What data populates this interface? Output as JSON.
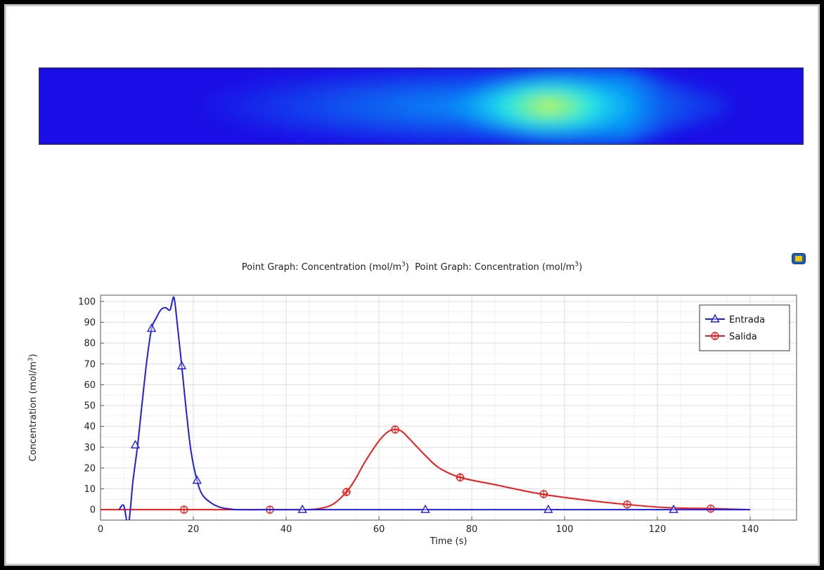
{
  "header": {
    "title_prefix": "Point Graph: Concentration (mol/m",
    "title_sup": "3",
    "title_suffix": ")",
    "export_icon": "export-image-icon"
  },
  "heatmap": {
    "colormap": [
      "#1a0fe6",
      "#00c8ff",
      "#2fffe0",
      "#d9f53a"
    ]
  },
  "chart_data": {
    "type": "line",
    "title": "Point Graph: Concentration (mol/m3)  Point Graph: Concentration (mol/m3)",
    "xlabel": "Time (s)",
    "ylabel": "Concentration (mol/m3)",
    "xlim": [
      0,
      150
    ],
    "ylim": [
      0,
      100
    ],
    "xticks": [
      0,
      20,
      40,
      60,
      80,
      100,
      120,
      140
    ],
    "yticks": [
      0,
      10,
      20,
      30,
      40,
      50,
      60,
      70,
      80,
      90,
      100
    ],
    "grid": true,
    "legend": "top-right",
    "series": [
      {
        "name": "Entrada",
        "color": "#1f1fe0",
        "marker": "triangle",
        "x": [
          4,
          5,
          6,
          7,
          8,
          9,
          10,
          11,
          12,
          13,
          14,
          15,
          15.8,
          16.5,
          17.5,
          18.5,
          19.5,
          20.8,
          22,
          24,
          26,
          28,
          30,
          35,
          40,
          50,
          60,
          70,
          80,
          90,
          100,
          110,
          120,
          130,
          140
        ],
        "y": [
          0,
          2,
          -7,
          14,
          31,
          52,
          72,
          87,
          92,
          96,
          97,
          96,
          102,
          90,
          69,
          47,
          28,
          14,
          7,
          3,
          1,
          0.3,
          0,
          0,
          0,
          0,
          0,
          0,
          0,
          0,
          0,
          0,
          0,
          0,
          0
        ],
        "markers": [
          [
            7.5,
            31
          ],
          [
            11,
            87
          ],
          [
            17.5,
            69
          ],
          [
            20.8,
            14
          ],
          [
            43.5,
            0
          ],
          [
            70,
            0
          ],
          [
            96.5,
            0
          ],
          [
            123.5,
            0
          ]
        ]
      },
      {
        "name": "Salida",
        "color": "#ef1a1a",
        "marker": "circle-cross",
        "x": [
          0,
          40,
          44,
          47,
          50,
          53,
          55,
          57,
          60,
          62,
          63.5,
          65,
          67,
          70,
          73,
          77.5,
          85,
          95,
          105,
          113.5,
          122,
          132,
          140
        ],
        "y": [
          0,
          0,
          0,
          0.5,
          2.5,
          8.5,
          15,
          23,
          33,
          37.5,
          38.5,
          37.5,
          33,
          26,
          20,
          15.5,
          12,
          7.5,
          4.5,
          2.5,
          1,
          0.5,
          0
        ],
        "markers": [
          [
            18,
            0
          ],
          [
            36.5,
            0
          ],
          [
            53,
            8.5
          ],
          [
            63.5,
            38.5
          ],
          [
            77.5,
            15.5
          ],
          [
            95.5,
            7.5
          ],
          [
            113.5,
            2.5
          ],
          [
            131.5,
            0.5
          ]
        ]
      }
    ]
  }
}
